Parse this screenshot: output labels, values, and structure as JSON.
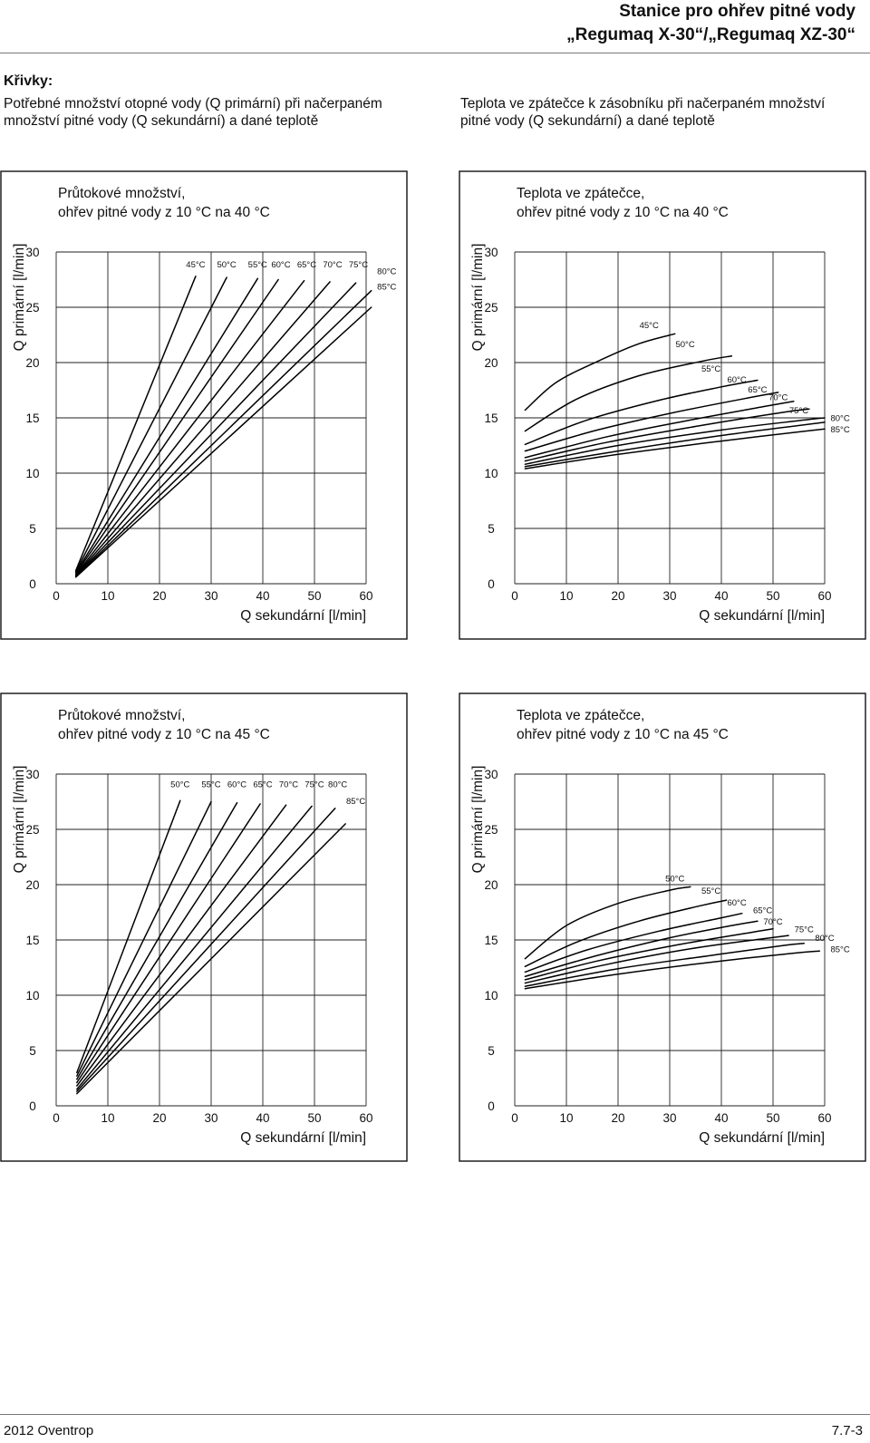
{
  "header": {
    "line1": "Stanice pro ohřev pitné vody",
    "line2": "„Regumaq X-30“/„Regumaq XZ-30“"
  },
  "intro": {
    "heading": "Křivky:",
    "left": "Potřebné množství otopné vody (Q primární) při načerpaném množství pitné vody (Q sekundární) a dané teplotě",
    "right": "Teplota ve zpátečce k zásobníku při načerpaném množství pitné vody (Q sekundární) a dané teplotě"
  },
  "footer": {
    "left": "2012 Oventrop",
    "right": "7.7-3"
  },
  "chart_data": [
    {
      "type": "line",
      "title_line1": "Průtokové množství,",
      "title_line2": "ohřev pitné vody z 10 °C na 40 °C",
      "xlabel": "Q sekundární [l/min]",
      "ylabel": "Q primární [l/min]",
      "xlim": [
        0,
        60
      ],
      "ylim": [
        0,
        30
      ],
      "xticks": [
        "0",
        "10",
        "20",
        "30",
        "40",
        "50",
        "60"
      ],
      "yticks": [
        "0",
        "5",
        "10",
        "15",
        "20",
        "25",
        "30"
      ],
      "grid": true,
      "series": [
        {
          "name": "45°C",
          "points": [
            [
              3.8,
              1.2
            ],
            [
              27,
              27.8
            ]
          ],
          "label_at": [
            27,
            28.6
          ]
        },
        {
          "name": "50°C",
          "points": [
            [
              3.8,
              1.1
            ],
            [
              33,
              27.7
            ]
          ],
          "label_at": [
            33,
            28.6
          ]
        },
        {
          "name": "55°C",
          "points": [
            [
              3.8,
              1.0
            ],
            [
              39,
              27.6
            ]
          ],
          "label_at": [
            39,
            28.6
          ]
        },
        {
          "name": "60°C",
          "points": [
            [
              3.8,
              0.9
            ],
            [
              43,
              27.5
            ]
          ],
          "label_at": [
            43.5,
            28.6
          ]
        },
        {
          "name": "65°C",
          "points": [
            [
              3.8,
              0.8
            ],
            [
              48,
              27.4
            ]
          ],
          "label_at": [
            48.5,
            28.6
          ]
        },
        {
          "name": "70°C",
          "points": [
            [
              3.8,
              0.75
            ],
            [
              53,
              27.3
            ]
          ],
          "label_at": [
            53.5,
            28.6
          ]
        },
        {
          "name": "75°C",
          "points": [
            [
              3.8,
              0.7
            ],
            [
              58,
              27.2
            ]
          ],
          "label_at": [
            58.5,
            28.6
          ]
        },
        {
          "name": "80°C",
          "points": [
            [
              3.8,
              0.65
            ],
            [
              61,
              26.5
            ]
          ],
          "label_at": [
            64,
            28.0
          ]
        },
        {
          "name": "85°C",
          "points": [
            [
              3.8,
              0.6
            ],
            [
              61,
              25.0
            ]
          ],
          "label_at": [
            64,
            26.6
          ]
        }
      ]
    },
    {
      "type": "line",
      "title_line1": "Teplota ve zpátečce,",
      "title_line2": "ohřev pitné vody z 10 °C na 40 °C",
      "xlabel": "Q sekundární [l/min]",
      "ylabel": "Q primární [l/min]",
      "xlim": [
        0,
        60
      ],
      "ylim": [
        0,
        30
      ],
      "xticks": [
        "0",
        "10",
        "20",
        "30",
        "40",
        "50",
        "60"
      ],
      "yticks": [
        "0",
        "5",
        "10",
        "15",
        "20",
        "25",
        "30"
      ],
      "grid": true,
      "series": [
        {
          "name": "45°C",
          "points": [
            [
              2,
              15.7
            ],
            [
              8,
              18.2
            ],
            [
              16,
              20.1
            ],
            [
              24,
              21.7
            ],
            [
              31,
              22.6
            ]
          ],
          "label_at": [
            26,
            23.1
          ]
        },
        {
          "name": "50°C",
          "points": [
            [
              2,
              13.8
            ],
            [
              12,
              16.7
            ],
            [
              24,
              18.8
            ],
            [
              36,
              20.1
            ],
            [
              42,
              20.6
            ]
          ],
          "label_at": [
            33,
            21.4
          ]
        },
        {
          "name": "55°C",
          "points": [
            [
              2,
              12.6
            ],
            [
              14,
              14.8
            ],
            [
              28,
              16.6
            ],
            [
              40,
              17.8
            ],
            [
              47,
              18.4
            ]
          ],
          "label_at": [
            38,
            19.2
          ]
        },
        {
          "name": "60°C",
          "points": [
            [
              2,
              12.0
            ],
            [
              16,
              13.9
            ],
            [
              30,
              15.4
            ],
            [
              44,
              16.7
            ],
            [
              51,
              17.3
            ]
          ],
          "label_at": [
            43,
            18.2
          ]
        },
        {
          "name": "65°C",
          "points": [
            [
              2,
              11.4
            ],
            [
              18,
              13.3
            ],
            [
              34,
              14.8
            ],
            [
              48,
              16.0
            ],
            [
              54,
              16.5
            ]
          ],
          "label_at": [
            47,
            17.3
          ]
        },
        {
          "name": "70°C",
          "points": [
            [
              2,
              11.1
            ],
            [
              18,
              12.8
            ],
            [
              36,
              14.3
            ],
            [
              52,
              15.5
            ],
            [
              57,
              15.8
            ]
          ],
          "label_at": [
            51,
            16.6
          ]
        },
        {
          "name": "75°C",
          "points": [
            [
              2,
              10.8
            ],
            [
              20,
              12.5
            ],
            [
              40,
              13.9
            ],
            [
              56,
              14.8
            ],
            [
              60,
              15.0
            ]
          ],
          "label_at": [
            55,
            15.4
          ]
        },
        {
          "name": "80°C",
          "points": [
            [
              2,
              10.6
            ],
            [
              20,
              12.0
            ],
            [
              40,
              13.4
            ],
            [
              60,
              14.6
            ]
          ],
          "label_at": [
            63,
            14.7
          ]
        },
        {
          "name": "85°C",
          "points": [
            [
              2,
              10.4
            ],
            [
              20,
              11.7
            ],
            [
              40,
              12.9
            ],
            [
              60,
              14.0
            ]
          ],
          "label_at": [
            63,
            13.7
          ]
        }
      ]
    },
    {
      "type": "line",
      "title_line1": "Průtokové množství,",
      "title_line2": "ohřev pitné vody z 10 °C na 45 °C",
      "xlabel": "Q sekundární [l/min]",
      "ylabel": "Q primární [l/min]",
      "xlim": [
        0,
        60
      ],
      "ylim": [
        0,
        30
      ],
      "xticks": [
        "0",
        "10",
        "20",
        "30",
        "40",
        "50",
        "60"
      ],
      "yticks": [
        "0",
        "5",
        "10",
        "15",
        "20",
        "25",
        "30"
      ],
      "grid": true,
      "series": [
        {
          "name": "50°C",
          "points": [
            [
              4.0,
              3.0
            ],
            [
              24,
              27.6
            ]
          ],
          "label_at": [
            24,
            28.8
          ]
        },
        {
          "name": "55°C",
          "points": [
            [
              4.0,
              2.7
            ],
            [
              30,
              27.5
            ]
          ],
          "label_at": [
            30,
            28.8
          ]
        },
        {
          "name": "60°C",
          "points": [
            [
              4.0,
              2.4
            ],
            [
              35,
              27.4
            ]
          ],
          "label_at": [
            35,
            28.8
          ]
        },
        {
          "name": "65°C",
          "points": [
            [
              4.0,
              2.1
            ],
            [
              39.5,
              27.3
            ]
          ],
          "label_at": [
            40,
            28.8
          ]
        },
        {
          "name": "70°C",
          "points": [
            [
              4.0,
              1.8
            ],
            [
              44.5,
              27.2
            ]
          ],
          "label_at": [
            45,
            28.8
          ]
        },
        {
          "name": "75°C",
          "points": [
            [
              4.0,
              1.5
            ],
            [
              49.5,
              27.1
            ]
          ],
          "label_at": [
            50,
            28.8
          ]
        },
        {
          "name": "80°C",
          "points": [
            [
              4.0,
              1.3
            ],
            [
              54,
              26.9
            ]
          ],
          "label_at": [
            54.5,
            28.8
          ]
        },
        {
          "name": "85°C",
          "points": [
            [
              4.0,
              1.1
            ],
            [
              56,
              25.5
            ]
          ],
          "label_at": [
            58,
            27.3
          ]
        }
      ]
    },
    {
      "type": "line",
      "title_line1": "Teplota ve zpátečce,",
      "title_line2": "ohřev pitné vody z 10 °C na 45 °C",
      "xlabel": "Q sekundární [l/min]",
      "ylabel": "Q primární [l/min]",
      "xlim": [
        0,
        60
      ],
      "ylim": [
        0,
        30
      ],
      "xticks": [
        "0",
        "10",
        "20",
        "30",
        "40",
        "50",
        "60"
      ],
      "yticks": [
        "0",
        "5",
        "10",
        "15",
        "20",
        "25",
        "30"
      ],
      "grid": true,
      "series": [
        {
          "name": "50°C",
          "points": [
            [
              2,
              13.3
            ],
            [
              10,
              16.3
            ],
            [
              20,
              18.3
            ],
            [
              30,
              19.5
            ],
            [
              34,
              19.8
            ]
          ],
          "label_at": [
            31,
            20.3
          ]
        },
        {
          "name": "55°C",
          "points": [
            [
              2,
              12.6
            ],
            [
              12,
              14.8
            ],
            [
              24,
              16.7
            ],
            [
              36,
              18.1
            ],
            [
              41,
              18.6
            ]
          ],
          "label_at": [
            38,
            19.2
          ]
        },
        {
          "name": "60°C",
          "points": [
            [
              2,
              12.1
            ],
            [
              14,
              14.1
            ],
            [
              28,
              15.8
            ],
            [
              40,
              17.0
            ],
            [
              44,
              17.4
            ]
          ],
          "label_at": [
            43,
            18.1
          ]
        },
        {
          "name": "65°C",
          "points": [
            [
              2,
              11.7
            ],
            [
              16,
              13.6
            ],
            [
              30,
              15.2
            ],
            [
              42,
              16.3
            ],
            [
              47,
              16.7
            ]
          ],
          "label_at": [
            48,
            17.4
          ]
        },
        {
          "name": "70°C",
          "points": [
            [
              2,
              11.4
            ],
            [
              16,
              13.1
            ],
            [
              32,
              14.6
            ],
            [
              46,
              15.7
            ],
            [
              50,
              16.0
            ]
          ],
          "label_at": [
            50,
            16.4
          ]
        },
        {
          "name": "75°C",
          "points": [
            [
              2,
              11.1
            ],
            [
              18,
              12.8
            ],
            [
              34,
              14.2
            ],
            [
              48,
              15.1
            ],
            [
              53,
              15.4
            ]
          ],
          "label_at": [
            56,
            15.7
          ]
        },
        {
          "name": "80°C",
          "points": [
            [
              2,
              10.8
            ],
            [
              20,
              12.4
            ],
            [
              38,
              13.6
            ],
            [
              52,
              14.5
            ],
            [
              56,
              14.7
            ]
          ],
          "label_at": [
            60,
            14.9
          ]
        },
        {
          "name": "85°C",
          "points": [
            [
              2,
              10.6
            ],
            [
              20,
              11.9
            ],
            [
              40,
              13.1
            ],
            [
              54,
              13.8
            ],
            [
              59,
              14.0
            ]
          ],
          "label_at": [
            63,
            13.9
          ]
        }
      ]
    }
  ]
}
